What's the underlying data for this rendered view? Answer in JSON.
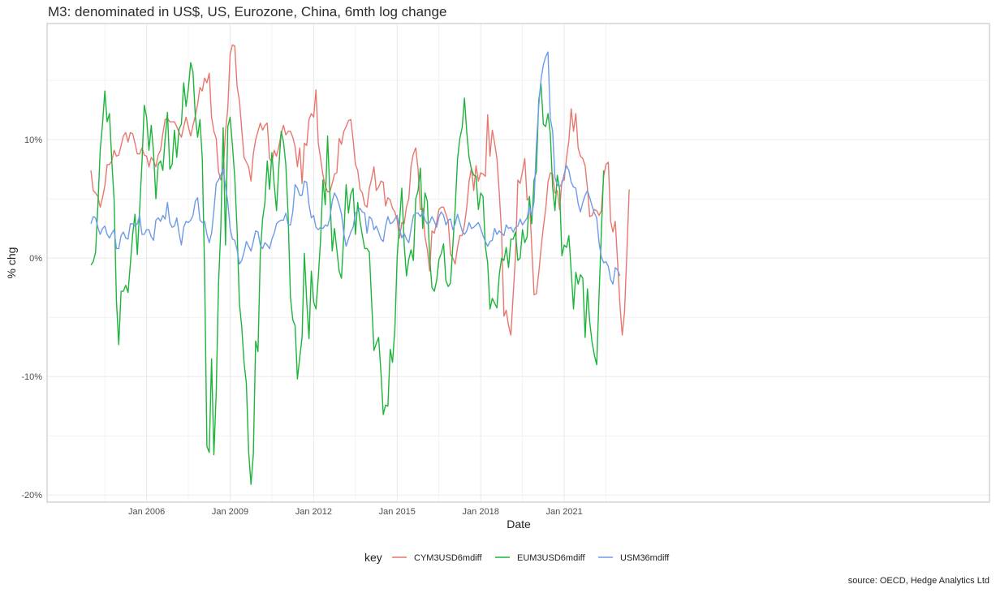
{
  "title": "M3: denominated in US$, US, Eurozone, China, 6mth log change",
  "caption": "source: OECD, Hedge Analytics Ltd",
  "colors": {
    "CYM3USD6mdiff": "#E8776F",
    "EUM3USD6mdiff": "#1DB43A",
    "USM36mdiff": "#6E9BE6",
    "grid": "#EBEBEB",
    "panel_border": "#BFBFBF"
  },
  "chart_data": {
    "type": "line",
    "xlabel": "Date",
    "ylabel": "% chg",
    "x_start": "2004-01",
    "x_step": "month",
    "x_ticks": [
      "Jan 2006",
      "Jan 2009",
      "Jan 2012",
      "Jan 2015",
      "Jan 2018",
      "Jan 2021"
    ],
    "y_ticks": [
      "-20%",
      "-10%",
      "0%",
      "10%"
    ],
    "ylim": [
      -20.6,
      19.8
    ],
    "grid": true,
    "legend_position": "bottom",
    "legend_title": "key",
    "series": [
      {
        "name": "CYM3USD6mdiff",
        "values": [
          7.4,
          5.7,
          5.5,
          5.2,
          4.3,
          5.1,
          6.1,
          7.9,
          7.9,
          8.2,
          9.1,
          8.6,
          8.7,
          9.5,
          10.3,
          10.6,
          9.8,
          10.6,
          10.5,
          9.7,
          8.8,
          8.8,
          9.3,
          8.7,
          8.6,
          7.7,
          8.5,
          8.2,
          7.7,
          8.7,
          9.1,
          10.5,
          11.7,
          11.8,
          11.5,
          11.5,
          11.5,
          11.1,
          10.6,
          10.2,
          11.1,
          11.9,
          11.1,
          10.3,
          11.2,
          12.0,
          13.0,
          14.4,
          14.1,
          15.2,
          14.8,
          15.6,
          11.9,
          10.7,
          10.1,
          7.3,
          6.6,
          7.3,
          10.7,
          12.6,
          17.2,
          18.0,
          17.9,
          14.5,
          13.3,
          10.9,
          8.5,
          8.1,
          7.7,
          6.5,
          8.8,
          10.0,
          10.7,
          11.4,
          10.8,
          11.2,
          11.4,
          8.4,
          8.1,
          9.1,
          8.6,
          9.4,
          10.5,
          11.2,
          10.4,
          10.7,
          10.7,
          10.2,
          9.4,
          7.7,
          9.3,
          6.3,
          9.7,
          9.5,
          11.7,
          12.2,
          11.9,
          14.2,
          9.7,
          8.4,
          7.0,
          6.1,
          5.6,
          5.6,
          6.3,
          7.1,
          7.2,
          10.1,
          9.6,
          10.7,
          11.1,
          11.6,
          11.7,
          10.0,
          7.9,
          7.4,
          5.8,
          5.5,
          4.5,
          4.3,
          5.9,
          6.7,
          7.7,
          5.7,
          6.0,
          6.5,
          6.4,
          4.4,
          5.1,
          4.9,
          4.2,
          3.9,
          3.2,
          1.7,
          3.0,
          2.9,
          4.3,
          5.0,
          7.8,
          8.8,
          9.3,
          7.5,
          4.1,
          4.2,
          1.8,
          0.7,
          -1.1,
          2.3,
          2.1,
          3.0,
          4.1,
          4.3,
          4.3,
          3.7,
          3.1,
          0.3,
          0.0,
          -0.5,
          0.9,
          1.9,
          1.9,
          2.8,
          4.3,
          6.5,
          7.6,
          5.7,
          7.8,
          6.5,
          7.2,
          7.1,
          6.9,
          12.1,
          8.6,
          10.8,
          9.7,
          8.4,
          5.5,
          2.1,
          -4.9,
          -4.4,
          -5.7,
          -6.5,
          -3.1,
          0.2,
          6.6,
          6.3,
          7.3,
          8.4,
          4.9,
          5.1,
          0.9,
          -3.1,
          -3.0,
          -1.3,
          0.8,
          2.6,
          4.1,
          6.4,
          7.2,
          7.1,
          5.5,
          5.7,
          4.1,
          6.5,
          6.6,
          8.5,
          9.9,
          12.6,
          10.7,
          12.2,
          9.3,
          8.6,
          8.4,
          7.8,
          5.9,
          3.5,
          3.6,
          4.1,
          4.0,
          3.6,
          4.0,
          6.9,
          7.9,
          8.1,
          3.1,
          2.2,
          3.1,
          -0.3,
          -3.9,
          -6.5,
          -4.5,
          0.5,
          5.8
        ]
      },
      {
        "name": "EUM3USD6mdiff",
        "values": [
          -0.6,
          -0.3,
          0.5,
          4.4,
          9.1,
          11.3,
          14.1,
          11.5,
          12.2,
          8.2,
          4.9,
          -3.6,
          -7.3,
          -2.8,
          -2.8,
          -2.3,
          -2.9,
          -0.5,
          2.0,
          3.7,
          0.3,
          4.1,
          8.0,
          12.9,
          11.9,
          9.1,
          11.2,
          8.9,
          5.0,
          7.9,
          8.2,
          7.4,
          10.1,
          12.3,
          7.5,
          7.9,
          10.8,
          8.5,
          10.9,
          11.3,
          14.8,
          12.8,
          14.3,
          16.5,
          15.7,
          12.0,
          10.2,
          11.7,
          8.4,
          -1.2,
          -15.9,
          -16.4,
          -8.5,
          -16.6,
          -11.4,
          -2.2,
          2.6,
          11.0,
          1.1,
          11.1,
          11.9,
          9.5,
          6.8,
          2.4,
          -3.8,
          -5.8,
          -8.8,
          -10.6,
          -16.4,
          -19.1,
          -16.6,
          -7.0,
          -7.9,
          0.3,
          3.3,
          4.7,
          8.2,
          5.8,
          8.9,
          6.2,
          4.0,
          7.7,
          10.7,
          9.8,
          7.9,
          3.6,
          -3.3,
          -5.2,
          -5.7,
          -10.2,
          -8.4,
          -6.7,
          0.4,
          -3.6,
          -6.8,
          -1.1,
          -3.7,
          -4.3,
          -1.6,
          1.6,
          6.6,
          4.5,
          10.3,
          5.4,
          0.6,
          2.5,
          0.7,
          -1.1,
          -1.7,
          2.0,
          6.2,
          3.8,
          5.4,
          5.9,
          2.0,
          4.7,
          3.1,
          1.9,
          0.8,
          0.8,
          0.5,
          -3.7,
          -7.8,
          -7.2,
          -6.7,
          -9.6,
          -13.2,
          -12.4,
          -12.5,
          -7.7,
          -8.8,
          -6.0,
          0.1,
          3.0,
          5.9,
          1.2,
          -1.5,
          -0.1,
          0.7,
          -0.2,
          5.0,
          5.7,
          7.6,
          2.5,
          5.5,
          4.8,
          0.1,
          -2.5,
          -2.8,
          -1.9,
          -0.1,
          0.4,
          1.2,
          -1.9,
          -2.4,
          -2.1,
          1.1,
          4.2,
          8.3,
          10.1,
          11.0,
          13.5,
          10.6,
          8.5,
          7.5,
          7.0,
          6.9,
          4.1,
          5.5,
          5.2,
          1.0,
          -0.4,
          -4.3,
          -3.4,
          -3.8,
          -4.2,
          -1.4,
          0.0,
          -0.2,
          0.9,
          -0.8,
          1.6,
          1.6,
          2.2,
          -0.2,
          0.0,
          2.4,
          1.3,
          1.8,
          5.2,
          2.9,
          6.6,
          7.3,
          13.3,
          14.7,
          11.3,
          11.1,
          12.2,
          10.5,
          6.0,
          4.0,
          7.0,
          5.8,
          0.2,
          1.1,
          0.9,
          1.9,
          -1.1,
          -4.3,
          -1.2,
          -2.2,
          -1.4,
          -1.7,
          -6.7,
          -2.6,
          -5.4,
          -7.1,
          -8.2,
          -9.0,
          -3.2,
          2.2,
          7.4
        ]
      },
      {
        "name": "USM36mdiff",
        "values": [
          2.9,
          3.5,
          3.4,
          2.6,
          2.0,
          2.5,
          2.7,
          2.0,
          1.7,
          2.1,
          2.4,
          0.8,
          0.8,
          1.9,
          2.2,
          1.7,
          1.6,
          2.9,
          2.9,
          2.7,
          2.9,
          3.6,
          2.0,
          2.0,
          2.4,
          2.4,
          1.8,
          1.5,
          3.2,
          3.4,
          3.1,
          3.6,
          3.3,
          4.7,
          3.0,
          2.6,
          2.7,
          3.4,
          2.1,
          1.1,
          2.6,
          3.1,
          3.0,
          3.2,
          3.6,
          4.8,
          5.1,
          3.2,
          3.0,
          3.1,
          2.0,
          1.3,
          2.1,
          4.0,
          6.3,
          6.6,
          7.0,
          7.6,
          6.1,
          4.7,
          2.5,
          1.6,
          1.5,
          0.7,
          -0.5,
          -0.2,
          0.5,
          1.4,
          1.0,
          0.6,
          1.4,
          2.3,
          2.2,
          1.1,
          0.8,
          1.3,
          1.1,
          0.8,
          1.6,
          2.1,
          2.9,
          3.1,
          3.2,
          3.2,
          3.8,
          2.8,
          2.8,
          3.9,
          6.2,
          5.9,
          5.3,
          5.3,
          6.5,
          6.4,
          4.5,
          3.4,
          3.6,
          2.6,
          2.4,
          2.6,
          2.5,
          2.8,
          2.7,
          3.4,
          4.8,
          5.5,
          5.1,
          4.5,
          3.7,
          2.1,
          1.0,
          1.6,
          2.2,
          2.6,
          3.8,
          4.0,
          4.2,
          3.9,
          3.8,
          2.1,
          3.5,
          3.3,
          2.4,
          2.7,
          2.2,
          1.6,
          1.4,
          2.7,
          3.5,
          2.9,
          3.0,
          3.3,
          3.6,
          2.5,
          1.7,
          2.1,
          1.6,
          1.3,
          2.5,
          3.6,
          3.8,
          3.8,
          3.5,
          3.9,
          3.2,
          2.9,
          3.0,
          3.5,
          3.1,
          2.6,
          3.5,
          3.9,
          3.6,
          2.8,
          3.2,
          3.3,
          2.4,
          2.9,
          3.7,
          3.0,
          2.3,
          2.0,
          2.3,
          3.0,
          2.5,
          2.6,
          2.8,
          3.0,
          2.5,
          1.9,
          1.4,
          1.0,
          1.4,
          1.5,
          2.5,
          2.0,
          2.3,
          2.1,
          1.9,
          2.8,
          2.5,
          2.6,
          2.2,
          2.6,
          2.7,
          3.3,
          2.8,
          3.1,
          3.4,
          4.4,
          3.6,
          4.8,
          9.5,
          12.8,
          15.1,
          16.3,
          17.0,
          17.4,
          11.8,
          10.7,
          6.8,
          6.2,
          6.0,
          6.3,
          7.1,
          7.8,
          7.4,
          6.4,
          6.0,
          5.9,
          4.6,
          3.9,
          4.7,
          5.3,
          5.7,
          5.1,
          4.4,
          3.8,
          3.4,
          1.3,
          0.1,
          -0.4,
          -0.3,
          -0.7,
          -1.8,
          -2.2,
          -0.8,
          -1.0,
          -1.5
        ]
      }
    ]
  }
}
